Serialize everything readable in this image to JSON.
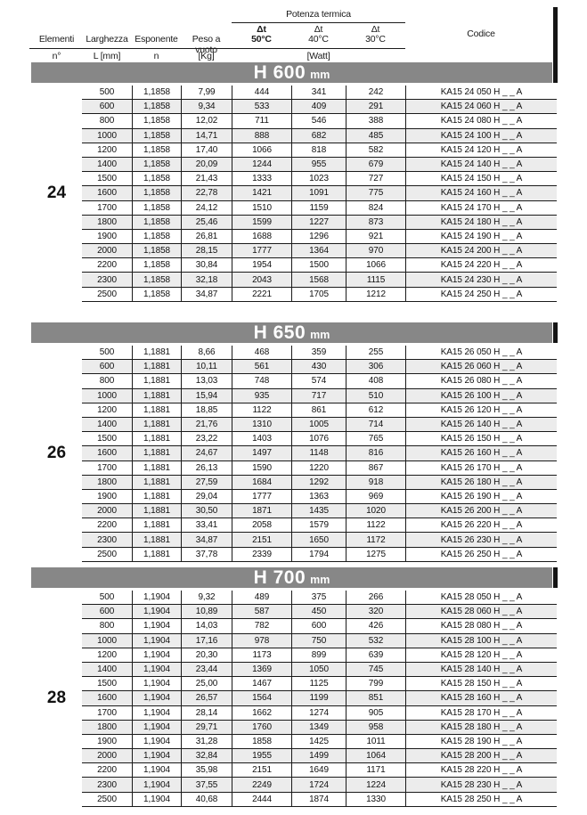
{
  "header": {
    "group_label": "Potenza termica",
    "columns": {
      "elementi": {
        "label": "Elementi",
        "sub": "n°"
      },
      "larghezza": {
        "label": "Larghezza",
        "sub": "L [mm]"
      },
      "esponente": {
        "label": "Esponente",
        "sub": "n"
      },
      "peso": {
        "label": "Peso a vuoto",
        "sub": "[Kg]"
      },
      "dt50": {
        "label": "Δt",
        "sub": "50°C"
      },
      "dt40": {
        "label": "Δt",
        "sub": "40°C"
      },
      "dt30": {
        "label": "Δt",
        "sub": "30°C"
      },
      "watt": {
        "label": "[Watt]"
      },
      "codice": {
        "label": "Codice"
      }
    }
  },
  "colors": {
    "band_gray": "#878787",
    "stripe": "#ececec",
    "border": "#1a1a1a"
  },
  "sections": [
    {
      "title": "H 600",
      "unit": "mm",
      "elements": "24",
      "rows": [
        [
          "500",
          "1,1858",
          "7,99",
          "444",
          "341",
          "242",
          "KA15 24 050 H _ _  A"
        ],
        [
          "600",
          "1,1858",
          "9,34",
          "533",
          "409",
          "291",
          "KA15 24 060 H _ _  A"
        ],
        [
          "800",
          "1,1858",
          "12,02",
          "711",
          "546",
          "388",
          "KA15 24 080 H _ _  A"
        ],
        [
          "1000",
          "1,1858",
          "14,71",
          "888",
          "682",
          "485",
          "KA15 24 100 H _ _  A"
        ],
        [
          "1200",
          "1,1858",
          "17,40",
          "1066",
          "818",
          "582",
          "KA15 24 120 H _ _  A"
        ],
        [
          "1400",
          "1,1858",
          "20,09",
          "1244",
          "955",
          "679",
          "KA15 24 140 H _ _  A"
        ],
        [
          "1500",
          "1,1858",
          "21,43",
          "1333",
          "1023",
          "727",
          "KA15 24 150 H _ _  A"
        ],
        [
          "1600",
          "1,1858",
          "22,78",
          "1421",
          "1091",
          "775",
          "KA15 24 160 H _ _  A"
        ],
        [
          "1700",
          "1,1858",
          "24,12",
          "1510",
          "1159",
          "824",
          "KA15 24 170 H _ _  A"
        ],
        [
          "1800",
          "1,1858",
          "25,46",
          "1599",
          "1227",
          "873",
          "KA15 24 180 H _ _  A"
        ],
        [
          "1900",
          "1,1858",
          "26,81",
          "1688",
          "1296",
          "921",
          "KA15 24 190 H _ _  A"
        ],
        [
          "2000",
          "1,1858",
          "28,15",
          "1777",
          "1364",
          "970",
          "KA15 24 200 H _ _  A"
        ],
        [
          "2200",
          "1,1858",
          "30,84",
          "1954",
          "1500",
          "1066",
          "KA15 24 220 H _ _  A"
        ],
        [
          "2300",
          "1,1858",
          "32,18",
          "2043",
          "1568",
          "1115",
          "KA15 24 230 H _ _  A"
        ],
        [
          "2500",
          "1,1858",
          "34,87",
          "2221",
          "1705",
          "1212",
          "KA15 24 250 H _ _  A"
        ]
      ]
    },
    {
      "title": "H 650",
      "unit": "mm",
      "elements": "26",
      "rows": [
        [
          "500",
          "1,1881",
          "8,66",
          "468",
          "359",
          "255",
          "KA15 26 050 H _ _  A"
        ],
        [
          "600",
          "1,1881",
          "10,11",
          "561",
          "430",
          "306",
          "KA15 26 060 H _ _  A"
        ],
        [
          "800",
          "1,1881",
          "13,03",
          "748",
          "574",
          "408",
          "KA15 26 080 H _ _  A"
        ],
        [
          "1000",
          "1,1881",
          "15,94",
          "935",
          "717",
          "510",
          "KA15 26 100 H _ _  A"
        ],
        [
          "1200",
          "1,1881",
          "18,85",
          "1122",
          "861",
          "612",
          "KA15 26 120 H _ _  A"
        ],
        [
          "1400",
          "1,1881",
          "21,76",
          "1310",
          "1005",
          "714",
          "KA15 26 140 H _ _  A"
        ],
        [
          "1500",
          "1,1881",
          "23,22",
          "1403",
          "1076",
          "765",
          "KA15 26 150 H _ _  A"
        ],
        [
          "1600",
          "1,1881",
          "24,67",
          "1497",
          "1148",
          "816",
          "KA15 26 160 H _ _  A"
        ],
        [
          "1700",
          "1,1881",
          "26,13",
          "1590",
          "1220",
          "867",
          "KA15 26 170 H _ _  A"
        ],
        [
          "1800",
          "1,1881",
          "27,59",
          "1684",
          "1292",
          "918",
          "KA15 26 180 H _ _  A"
        ],
        [
          "1900",
          "1,1881",
          "29,04",
          "1777",
          "1363",
          "969",
          "KA15 26 190 H _ _  A"
        ],
        [
          "2000",
          "1,1881",
          "30,50",
          "1871",
          "1435",
          "1020",
          "KA15 26 200 H _ _  A"
        ],
        [
          "2200",
          "1,1881",
          "33,41",
          "2058",
          "1579",
          "1122",
          "KA15 26 220 H _ _  A"
        ],
        [
          "2300",
          "1,1881",
          "34,87",
          "2151",
          "1650",
          "1172",
          "KA15 26 230 H _ _  A"
        ],
        [
          "2500",
          "1,1881",
          "37,78",
          "2339",
          "1794",
          "1275",
          "KA15 26 250 H _ _  A"
        ]
      ]
    },
    {
      "title": "H 700",
      "unit": "mm",
      "elements": "28",
      "rows": [
        [
          "500",
          "1,1904",
          "9,32",
          "489",
          "375",
          "266",
          "KA15 28 050 H _ _  A"
        ],
        [
          "600",
          "1,1904",
          "10,89",
          "587",
          "450",
          "320",
          "KA15 28 060 H _ _  A"
        ],
        [
          "800",
          "1,1904",
          "14,03",
          "782",
          "600",
          "426",
          "KA15 28 080 H _ _  A"
        ],
        [
          "1000",
          "1,1904",
          "17,16",
          "978",
          "750",
          "532",
          "KA15 28 100 H _ _  A"
        ],
        [
          "1200",
          "1,1904",
          "20,30",
          "1173",
          "899",
          "639",
          "KA15 28 120 H _ _  A"
        ],
        [
          "1400",
          "1,1904",
          "23,44",
          "1369",
          "1050",
          "745",
          "KA15 28 140 H _ _  A"
        ],
        [
          "1500",
          "1,1904",
          "25,00",
          "1467",
          "1125",
          "799",
          "KA15 28 150 H _ _  A"
        ],
        [
          "1600",
          "1,1904",
          "26,57",
          "1564",
          "1199",
          "851",
          "KA15 28 160 H _ _  A"
        ],
        [
          "1700",
          "1,1904",
          "28,14",
          "1662",
          "1274",
          "905",
          "KA15 28 170 H _ _  A"
        ],
        [
          "1800",
          "1,1904",
          "29,71",
          "1760",
          "1349",
          "958",
          "KA15 28 180 H _ _  A"
        ],
        [
          "1900",
          "1,1904",
          "31,28",
          "1858",
          "1425",
          "1011",
          "KA15 28 190 H _ _  A"
        ],
        [
          "2000",
          "1,1904",
          "32,84",
          "1955",
          "1499",
          "1064",
          "KA15 28 200 H _ _  A"
        ],
        [
          "2200",
          "1,1904",
          "35,98",
          "2151",
          "1649",
          "1171",
          "KA15 28 220 H _ _  A"
        ],
        [
          "2300",
          "1,1904",
          "37,55",
          "2249",
          "1724",
          "1224",
          "KA15 28 230 H _ _  A"
        ],
        [
          "2500",
          "1,1904",
          "40,68",
          "2444",
          "1874",
          "1330",
          "KA15 28 250 H _ _  A"
        ]
      ]
    }
  ]
}
